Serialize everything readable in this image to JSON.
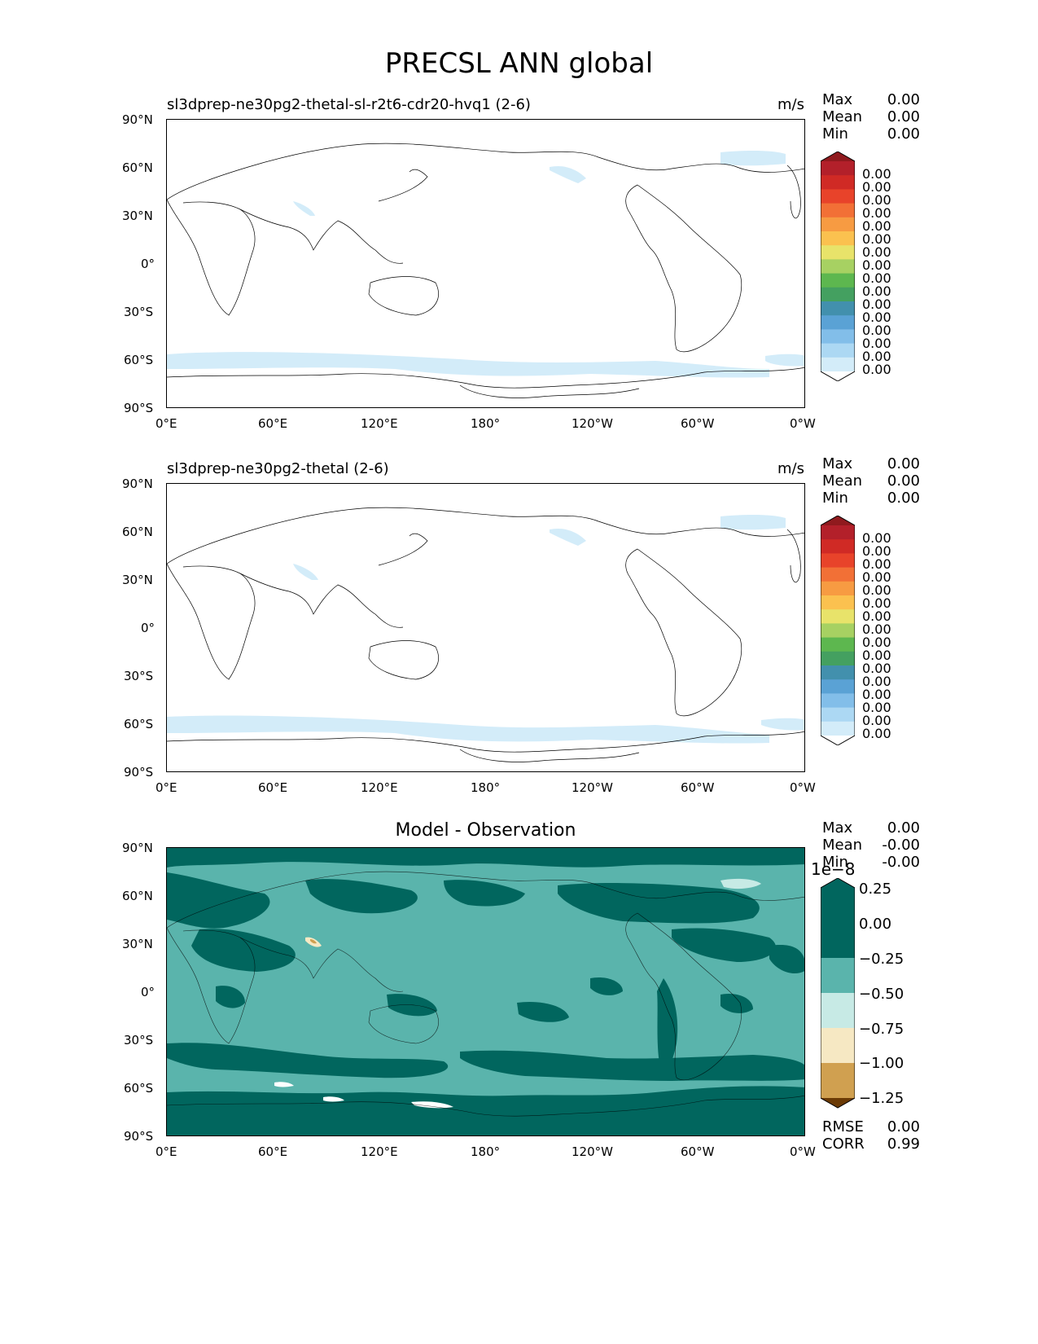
{
  "figure": {
    "title": "PRECSL ANN global"
  },
  "axes": {
    "lat_ticks": [
      "90°N",
      "60°N",
      "30°N",
      "0°",
      "30°S",
      "60°S",
      "90°S"
    ],
    "lon_ticks": [
      "0°E",
      "60°E",
      "120°E",
      "180°",
      "120°W",
      "60°W",
      "0°W"
    ]
  },
  "panels": [
    {
      "title": "sl3dprep-ne30pg2-thetal-sl-r2t6-cdr20-hvq1 (2-6)",
      "units": "m/s",
      "stats": [
        {
          "label": "Max",
          "value": "0.00"
        },
        {
          "label": "Mean",
          "value": "0.00"
        },
        {
          "label": "Min",
          "value": "0.00"
        }
      ],
      "colorbar": {
        "labels": [
          "0.00",
          "0.00",
          "0.00",
          "0.00",
          "0.00",
          "0.00",
          "0.00",
          "0.00",
          "0.00",
          "0.00",
          "0.00",
          "0.00",
          "0.00",
          "0.00",
          "0.00",
          "0.00"
        ],
        "colors": [
          "#901a1e",
          "#b3202a",
          "#d02a25",
          "#e8432a",
          "#f27036",
          "#f79b42",
          "#fbc14f",
          "#e8e36a",
          "#a7d162",
          "#5db74f",
          "#44a060",
          "#4290ad",
          "#5aa2d5",
          "#82bee9",
          "#acd8f3",
          "#d3ecf9",
          "#ffffff"
        ]
      }
    },
    {
      "title": "sl3dprep-ne30pg2-thetal (2-6)",
      "units": "m/s",
      "stats": [
        {
          "label": "Max",
          "value": "0.00"
        },
        {
          "label": "Mean",
          "value": "0.00"
        },
        {
          "label": "Min",
          "value": "0.00"
        }
      ],
      "colorbar": {
        "labels": [
          "0.00",
          "0.00",
          "0.00",
          "0.00",
          "0.00",
          "0.00",
          "0.00",
          "0.00",
          "0.00",
          "0.00",
          "0.00",
          "0.00",
          "0.00",
          "0.00",
          "0.00",
          "0.00"
        ],
        "colors": [
          "#901a1e",
          "#b3202a",
          "#d02a25",
          "#e8432a",
          "#f27036",
          "#f79b42",
          "#fbc14f",
          "#e8e36a",
          "#a7d162",
          "#5db74f",
          "#44a060",
          "#4290ad",
          "#5aa2d5",
          "#82bee9",
          "#acd8f3",
          "#d3ecf9",
          "#ffffff"
        ]
      }
    },
    {
      "title": "Model - Observation",
      "stats": [
        {
          "label": "Max",
          "value": "0.00"
        },
        {
          "label": "Mean",
          "value": "-0.00"
        },
        {
          "label": "Min",
          "value": "-0.00"
        }
      ],
      "metrics": [
        {
          "label": "RMSE",
          "value": "0.00"
        },
        {
          "label": "CORR",
          "value": "0.99"
        }
      ],
      "colorbar": {
        "exponent": "1e−8",
        "labels": [
          "0.25",
          "0.00",
          "−0.25",
          "−0.50",
          "−0.75",
          "−1.00",
          "−1.25"
        ],
        "colors": [
          "#01665e",
          "#01665e",
          "#5ab4ac",
          "#c7eae5",
          "#f6e8c3",
          "#d0a050",
          "#8c510a",
          "#6b3a05"
        ]
      }
    }
  ],
  "colors": {
    "precip_light": "#d3ecf9",
    "diff_dark": "#01665e",
    "diff_mid": "#5ab4ac",
    "diff_light": "#c7eae5"
  }
}
